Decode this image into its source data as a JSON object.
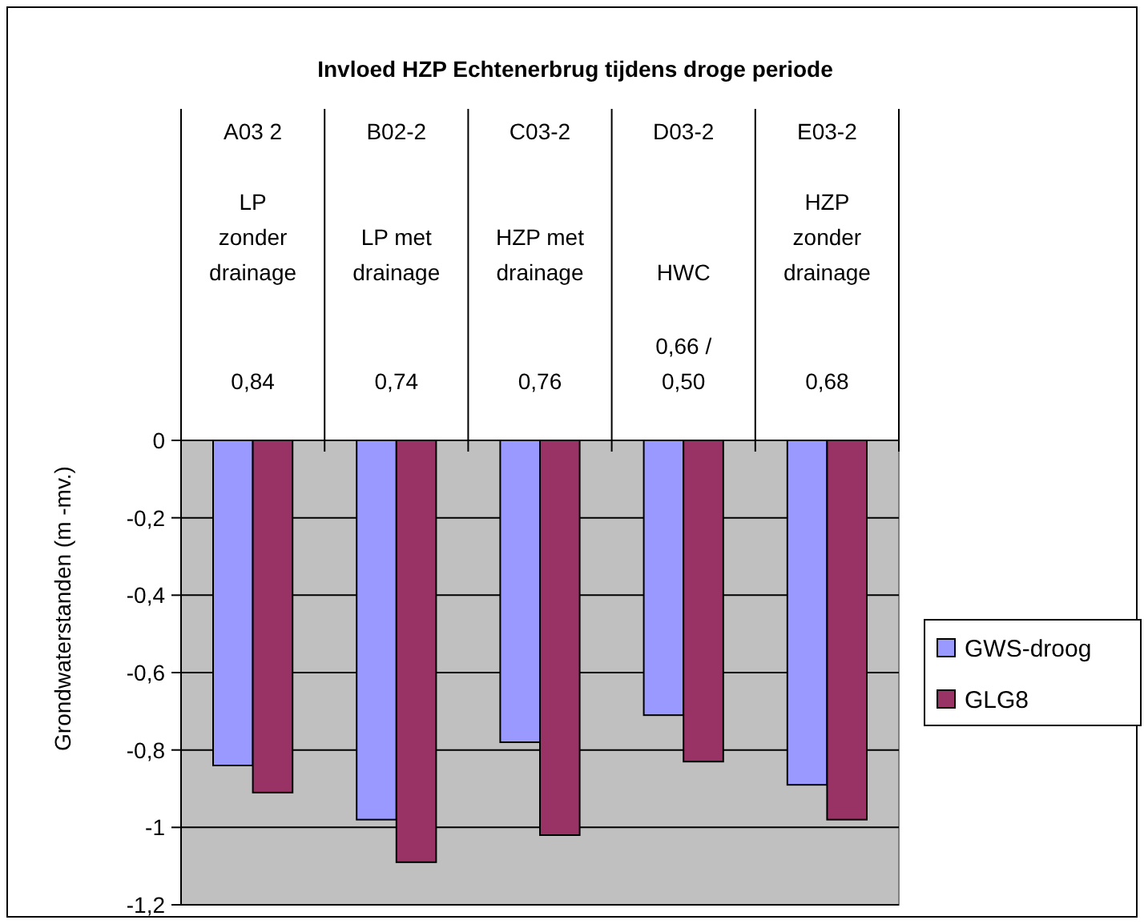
{
  "chart_data": {
    "type": "bar",
    "title": "Invloed HZP Echtenerbrug tijdens droge periode",
    "ylabel": "Grondwaterstanden (m -mv.)",
    "categories": [
      "A03 2\nLP zonder drainage\n0,84",
      "B02-2\nLP met drainage\n0,74",
      "C03-2\nHZP met drainage\n0,76",
      "D03-2\nHWC\n0,66 / 0,50",
      "E03-2\nHZP zonder drainage\n0,68"
    ],
    "series": [
      {
        "name": "GWS-droog",
        "color": "#9999ff",
        "values": [
          -0.84,
          -0.98,
          -0.78,
          -0.71,
          -0.89
        ]
      },
      {
        "name": "GLG8",
        "color": "#993366",
        "values": [
          -0.91,
          -1.09,
          -1.02,
          -0.83,
          -0.98
        ]
      }
    ],
    "ylim": [
      -1.2,
      0
    ],
    "yticks": [
      {
        "value": -1.2,
        "label": "-1,2"
      },
      {
        "value": -1,
        "label": "-1"
      },
      {
        "value": -0.8,
        "label": "-0,8"
      },
      {
        "value": -0.6,
        "label": "-0,6"
      },
      {
        "value": -0.4,
        "label": "-0,4"
      },
      {
        "value": -0.2,
        "label": "-0,2"
      },
      {
        "value": 0,
        "label": "0"
      }
    ],
    "grid": "y",
    "legend": "right"
  }
}
